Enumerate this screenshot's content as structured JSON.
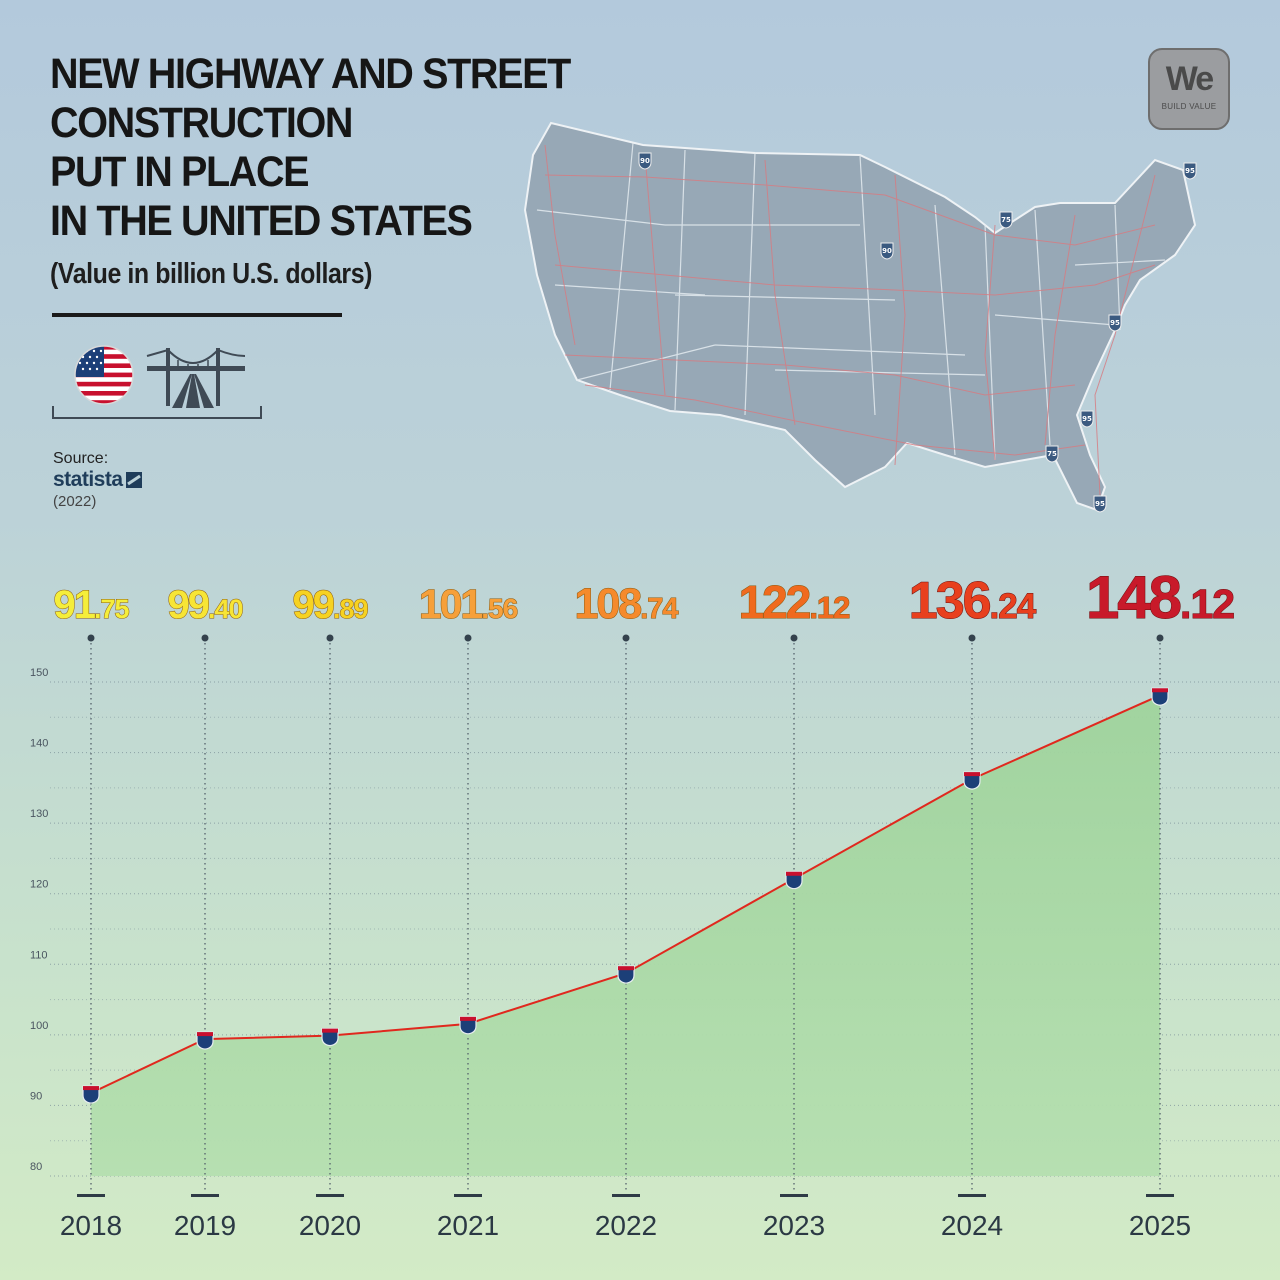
{
  "header": {
    "title_lines": [
      "NEW HIGHWAY AND STREET",
      "CONSTRUCTION",
      "PUT IN PLACE",
      "IN THE UNITED STATES"
    ],
    "subtitle": "(Value in billion U.S. dollars)"
  },
  "icons": {
    "flag": "us-flag-icon",
    "bridge": "suspension-bridge-road-icon"
  },
  "source": {
    "label": "Source:",
    "name": "statista",
    "year": "(2022)"
  },
  "logo": {
    "word": "We",
    "tagline": "BUILD VALUE"
  },
  "map": {
    "description_icon": "us-highway-map",
    "shield_numbers": [
      "90",
      "90",
      "95",
      "95",
      "95",
      "75",
      "75",
      "95",
      "95"
    ]
  },
  "colors": {
    "line": "#e0281e",
    "area": "#a5d6a2",
    "marker_top": "#c8102e",
    "marker_body": "#1c3f78",
    "value_gradient": [
      "#f5ee3a",
      "#f7e536",
      "#f6d222",
      "#f6a03a",
      "#f58a2c",
      "#f06a1e",
      "#e8401e",
      "#c81a2a"
    ]
  },
  "chart_data": {
    "type": "area",
    "title": "NEW HIGHWAY AND STREET CONSTRUCTION PUT IN PLACE IN THE UNITED STATES",
    "subtitle": "(Value in billion U.S. dollars)",
    "x": [
      "2018",
      "2019",
      "2020",
      "2021",
      "2022",
      "2023",
      "2024",
      "2025"
    ],
    "values": [
      91.75,
      99.4,
      99.89,
      101.56,
      108.74,
      122.12,
      136.24,
      148.12
    ],
    "value_labels": [
      {
        "int": "91",
        "dec": ".75"
      },
      {
        "int": "99",
        "dec": ".40"
      },
      {
        "int": "99",
        "dec": ".89"
      },
      {
        "int": "101",
        "dec": ".56"
      },
      {
        "int": "108",
        "dec": ".74"
      },
      {
        "int": "122",
        "dec": ".12"
      },
      {
        "int": "136",
        "dec": ".24"
      },
      {
        "int": "148",
        "dec": ".12"
      }
    ],
    "yticks": [
      "80",
      "90",
      "100",
      "110",
      "120",
      "130",
      "140",
      "150"
    ],
    "ylim": [
      80,
      150
    ],
    "grid": true,
    "legend": "none"
  }
}
